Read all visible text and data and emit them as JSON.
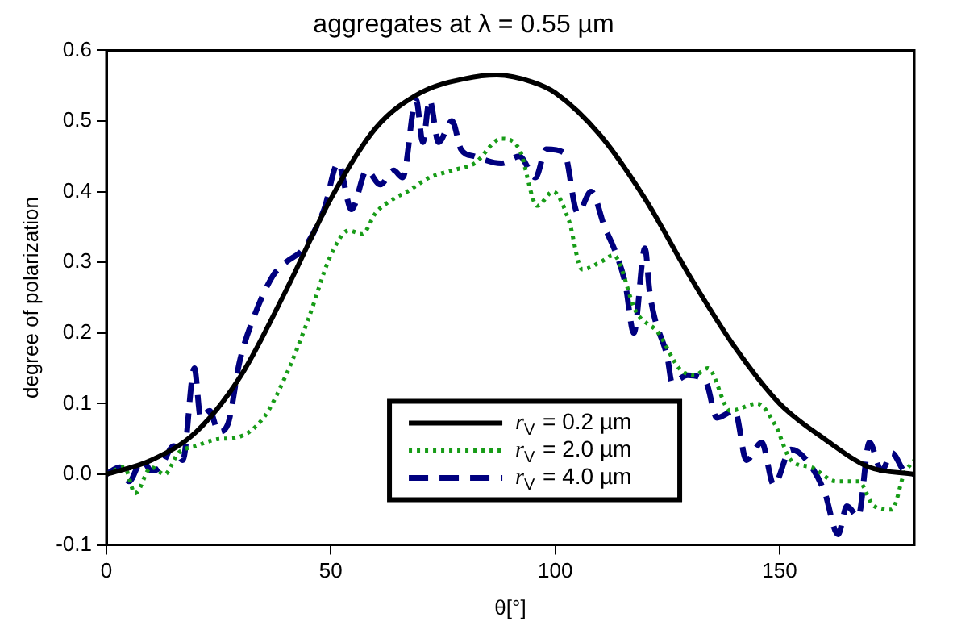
{
  "chart_data": {
    "type": "line",
    "title": "aggregates at λ = 0.55 µm",
    "xlabel": "θ[°]",
    "ylabel": "degree of polarization",
    "xlim": [
      0,
      180
    ],
    "xticks": [
      0,
      50,
      100,
      150
    ],
    "ylim": [
      -0.1,
      0.6
    ],
    "yticks": [
      -0.1,
      {
        "value": 0,
        "label": "0.0"
      },
      0.1,
      0.2,
      0.3,
      0.4,
      0.5,
      0.6
    ],
    "grid": false,
    "legend": "bottom",
    "marker": "none",
    "series": [
      {
        "name": "r$_{V}$ = 0.2 µm",
        "color": "#000000",
        "line_style": "solid",
        "x": [
          0,
          10,
          20,
          30,
          40,
          50,
          60,
          70,
          80,
          87,
          95,
          100,
          110,
          120,
          130,
          140,
          150,
          160,
          170,
          180
        ],
        "values": [
          0,
          0.02,
          0.06,
          0.14,
          0.26,
          0.39,
          0.49,
          0.54,
          0.56,
          0.565,
          0.555,
          0.54,
          0.48,
          0.39,
          0.28,
          0.18,
          0.1,
          0.05,
          0.01,
          0
        ]
      },
      {
        "name": "r$_{V}$ = 2.0 µm",
        "color": "#179c17",
        "line_style": "dotted",
        "x": [
          0,
          4,
          6.4,
          10,
          13,
          16,
          20,
          25,
          29,
          35,
          40,
          45,
          50,
          54,
          57,
          60,
          64,
          67,
          72,
          77,
          82,
          88,
          92,
          96,
          99.5,
          103,
          106,
          110,
          113,
          118,
          123,
          127.6,
          131,
          134,
          139,
          145,
          149,
          152.5,
          157,
          162.6,
          167.6,
          171,
          175,
          177.7,
          180
        ],
        "values": [
          0,
          0.01,
          -0.027,
          0.01,
          0,
          0.03,
          0.04,
          0.05,
          0.052,
          0.08,
          0.14,
          0.22,
          0.31,
          0.345,
          0.34,
          0.37,
          0.39,
          0.4,
          0.42,
          0.43,
          0.44,
          0.475,
          0.46,
          0.38,
          0.4,
          0.36,
          0.29,
          0.3,
          0.31,
          0.23,
          0.2,
          0.15,
          0.14,
          0.15,
          0.09,
          0.1,
          0.07,
          0.02,
          0.01,
          -0.01,
          -0.01,
          -0.045,
          -0.05,
          0,
          0.02
        ]
      },
      {
        "name": "r$_{V}$ = 4.0 µm",
        "color": "#00007f",
        "line_style": "dashed",
        "x": [
          0,
          3,
          5,
          8,
          10,
          12,
          15,
          17,
          19.6,
          21,
          23,
          25,
          27,
          29.7,
          32.7,
          37,
          40,
          44,
          48.5,
          51.6,
          54.6,
          58,
          61,
          64,
          66,
          69,
          70.5,
          72,
          74,
          77,
          79,
          82,
          88,
          92,
          95.6,
          98,
          102,
          105,
          108,
          111,
          113.7,
          115.6,
          117.5,
          120,
          121,
          122,
          125,
          126,
          129.5,
          133.6,
          136,
          140,
          142.6,
          146,
          148.7,
          152.5,
          156,
          160,
          163,
          165,
          167.5,
          170,
          172.7,
          175,
          177.7,
          180
        ],
        "values": [
          0,
          0.01,
          -0.01,
          0.02,
          0.005,
          0.01,
          0.04,
          0.02,
          0.15,
          0.08,
          0.09,
          0.06,
          0.07,
          0.16,
          0.22,
          0.28,
          0.3,
          0.32,
          0.375,
          0.44,
          0.375,
          0.43,
          0.41,
          0.43,
          0.42,
          0.53,
          0.47,
          0.53,
          0.47,
          0.5,
          0.46,
          0.45,
          0.44,
          0.45,
          0.42,
          0.46,
          0.455,
          0.37,
          0.4,
          0.35,
          0.31,
          0.27,
          0.2,
          0.32,
          0.26,
          0.225,
          0.165,
          0.13,
          0.14,
          0.13,
          0.08,
          0.09,
          0.02,
          0.045,
          -0.015,
          0.035,
          0.02,
          -0.025,
          -0.085,
          -0.045,
          -0.06,
          0.045,
          0.005,
          0.03,
          0.005,
          0
        ]
      }
    ]
  }
}
